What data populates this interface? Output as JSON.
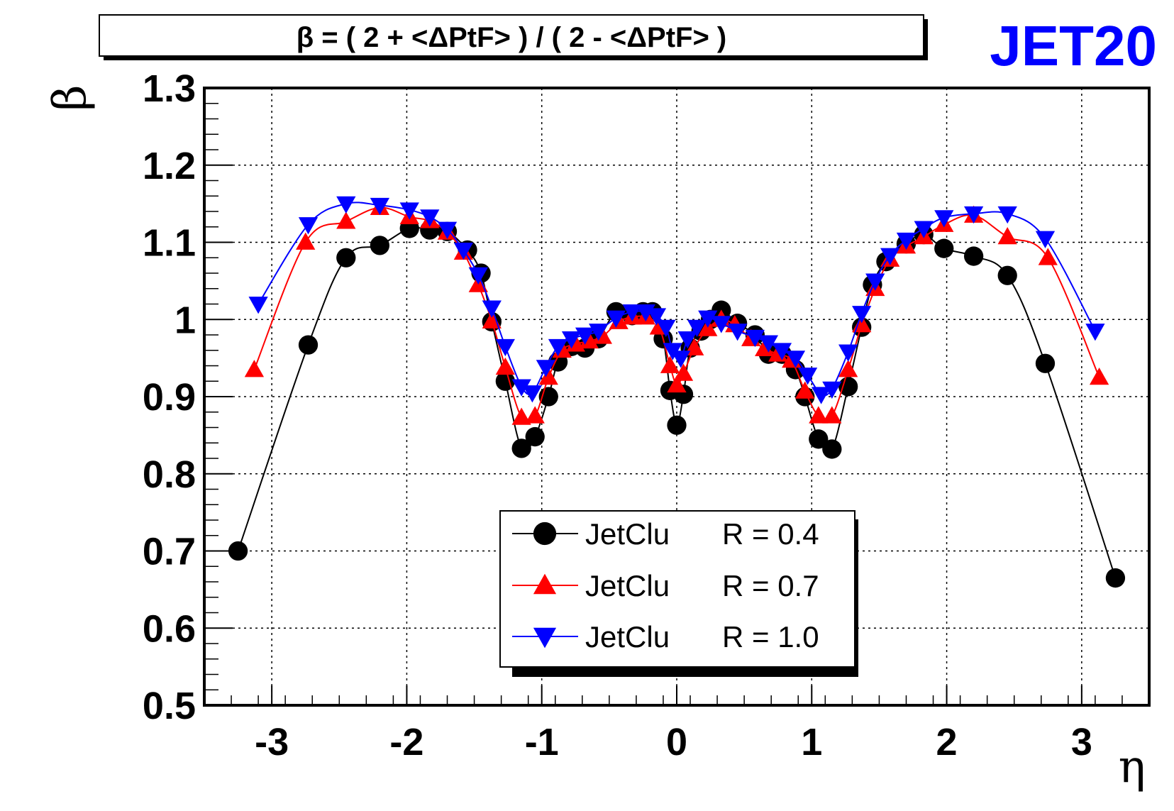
{
  "chart_data": {
    "type": "scatter",
    "title": "β = ( 2 + <ΔPtF> ) / ( 2 - <ΔPtF> )",
    "tag": "JET20",
    "tag_color": "#0000ff",
    "xlabel": "η",
    "ylabel": "β",
    "xlim": [
      -3.5,
      3.5
    ],
    "ylim": [
      0.5,
      1.3
    ],
    "xticks": [
      -3,
      -2,
      -1,
      0,
      1,
      2,
      3
    ],
    "xtick_labels": [
      "-3",
      "-2",
      "-1",
      "0",
      "1",
      "2",
      "3"
    ],
    "yticks": [
      0.5,
      0.6,
      0.7,
      0.8,
      0.9,
      1.0,
      1.1,
      1.2,
      1.3
    ],
    "ytick_labels": [
      "0.5",
      "0.6",
      "0.7",
      "0.8",
      "0.9",
      "1",
      "1.1",
      "1.2",
      "1.3"
    ],
    "grid": true,
    "legend_position": "bottom-center",
    "series": [
      {
        "name": "JetClu",
        "param": "R = 0.4",
        "color": "#000000",
        "marker": "circle",
        "x": [
          -3.25,
          -2.73,
          -2.45,
          -2.2,
          -1.98,
          -1.83,
          -1.7,
          -1.55,
          -1.45,
          -1.37,
          -1.27,
          -1.15,
          -1.05,
          -0.95,
          -0.88,
          -0.78,
          -0.68,
          -0.58,
          -0.45,
          -0.33,
          -0.25,
          -0.18,
          -0.1,
          -0.05,
          0.0,
          0.05,
          0.1,
          0.18,
          0.25,
          0.33,
          0.45,
          0.58,
          0.68,
          0.78,
          0.88,
          0.95,
          1.05,
          1.15,
          1.27,
          1.37,
          1.45,
          1.55,
          1.7,
          1.83,
          1.98,
          2.2,
          2.45,
          2.73,
          3.25
        ],
        "y": [
          0.7,
          0.967,
          1.08,
          1.096,
          1.118,
          1.116,
          1.114,
          1.09,
          1.06,
          0.997,
          0.92,
          0.833,
          0.848,
          0.9,
          0.945,
          0.965,
          0.963,
          0.975,
          1.01,
          1.005,
          1.01,
          1.01,
          0.975,
          0.908,
          0.863,
          0.903,
          0.963,
          0.985,
          1.0,
          1.012,
          0.995,
          0.98,
          0.955,
          0.955,
          0.935,
          0.9,
          0.845,
          0.832,
          0.913,
          0.99,
          1.045,
          1.075,
          1.098,
          1.11,
          1.092,
          1.082,
          1.057,
          0.943,
          0.665
        ]
      },
      {
        "name": "JetClu",
        "param": "R = 0.7",
        "color": "#ff0000",
        "marker": "triangle-up",
        "x": [
          -3.13,
          -2.75,
          -2.45,
          -2.2,
          -1.98,
          -1.83,
          -1.7,
          -1.58,
          -1.47,
          -1.37,
          -1.27,
          -1.15,
          -1.05,
          -0.95,
          -0.85,
          -0.75,
          -0.65,
          -0.55,
          -0.43,
          -0.33,
          -0.23,
          -0.13,
          -0.05,
          0.0,
          0.05,
          0.13,
          0.23,
          0.33,
          0.43,
          0.55,
          0.65,
          0.75,
          0.85,
          0.95,
          1.05,
          1.15,
          1.27,
          1.37,
          1.47,
          1.58,
          1.7,
          1.83,
          1.98,
          2.2,
          2.45,
          2.75,
          3.13
        ],
        "y": [
          0.935,
          1.1,
          1.127,
          1.145,
          1.133,
          1.128,
          1.113,
          1.087,
          1.045,
          0.998,
          0.938,
          0.873,
          0.875,
          0.925,
          0.96,
          0.968,
          0.972,
          0.978,
          0.997,
          1.003,
          1.003,
          0.99,
          0.94,
          0.915,
          0.93,
          0.963,
          0.988,
          1.0,
          0.993,
          0.975,
          0.962,
          0.955,
          0.947,
          0.907,
          0.875,
          0.875,
          0.935,
          0.993,
          1.04,
          1.078,
          1.095,
          1.107,
          1.123,
          1.135,
          1.107,
          1.08,
          0.925
        ]
      },
      {
        "name": "JetClu",
        "param": "R = 1.0",
        "color": "#0000ff",
        "marker": "triangle-down",
        "x": [
          -3.1,
          -2.73,
          -2.45,
          -2.2,
          -1.98,
          -1.83,
          -1.7,
          -1.58,
          -1.47,
          -1.37,
          -1.27,
          -1.15,
          -1.07,
          -0.97,
          -0.88,
          -0.78,
          -0.68,
          -0.58,
          -0.45,
          -0.33,
          -0.23,
          -0.15,
          -0.08,
          -0.03,
          0.03,
          0.08,
          0.15,
          0.23,
          0.33,
          0.45,
          0.58,
          0.68,
          0.78,
          0.88,
          0.97,
          1.07,
          1.15,
          1.27,
          1.37,
          1.47,
          1.58,
          1.7,
          1.83,
          1.98,
          2.2,
          2.45,
          2.73,
          3.1
        ],
        "y": [
          1.02,
          1.123,
          1.15,
          1.148,
          1.142,
          1.133,
          1.117,
          1.09,
          1.058,
          1.015,
          0.965,
          0.913,
          0.905,
          0.938,
          0.965,
          0.975,
          0.98,
          0.985,
          1.002,
          1.01,
          1.01,
          1.005,
          0.99,
          0.96,
          0.95,
          0.975,
          0.99,
          1.002,
          0.995,
          0.985,
          0.977,
          0.97,
          0.96,
          0.95,
          0.928,
          0.903,
          0.91,
          0.958,
          1.008,
          1.05,
          1.083,
          1.103,
          1.118,
          1.132,
          1.137,
          1.137,
          1.105,
          0.985
        ]
      }
    ]
  }
}
